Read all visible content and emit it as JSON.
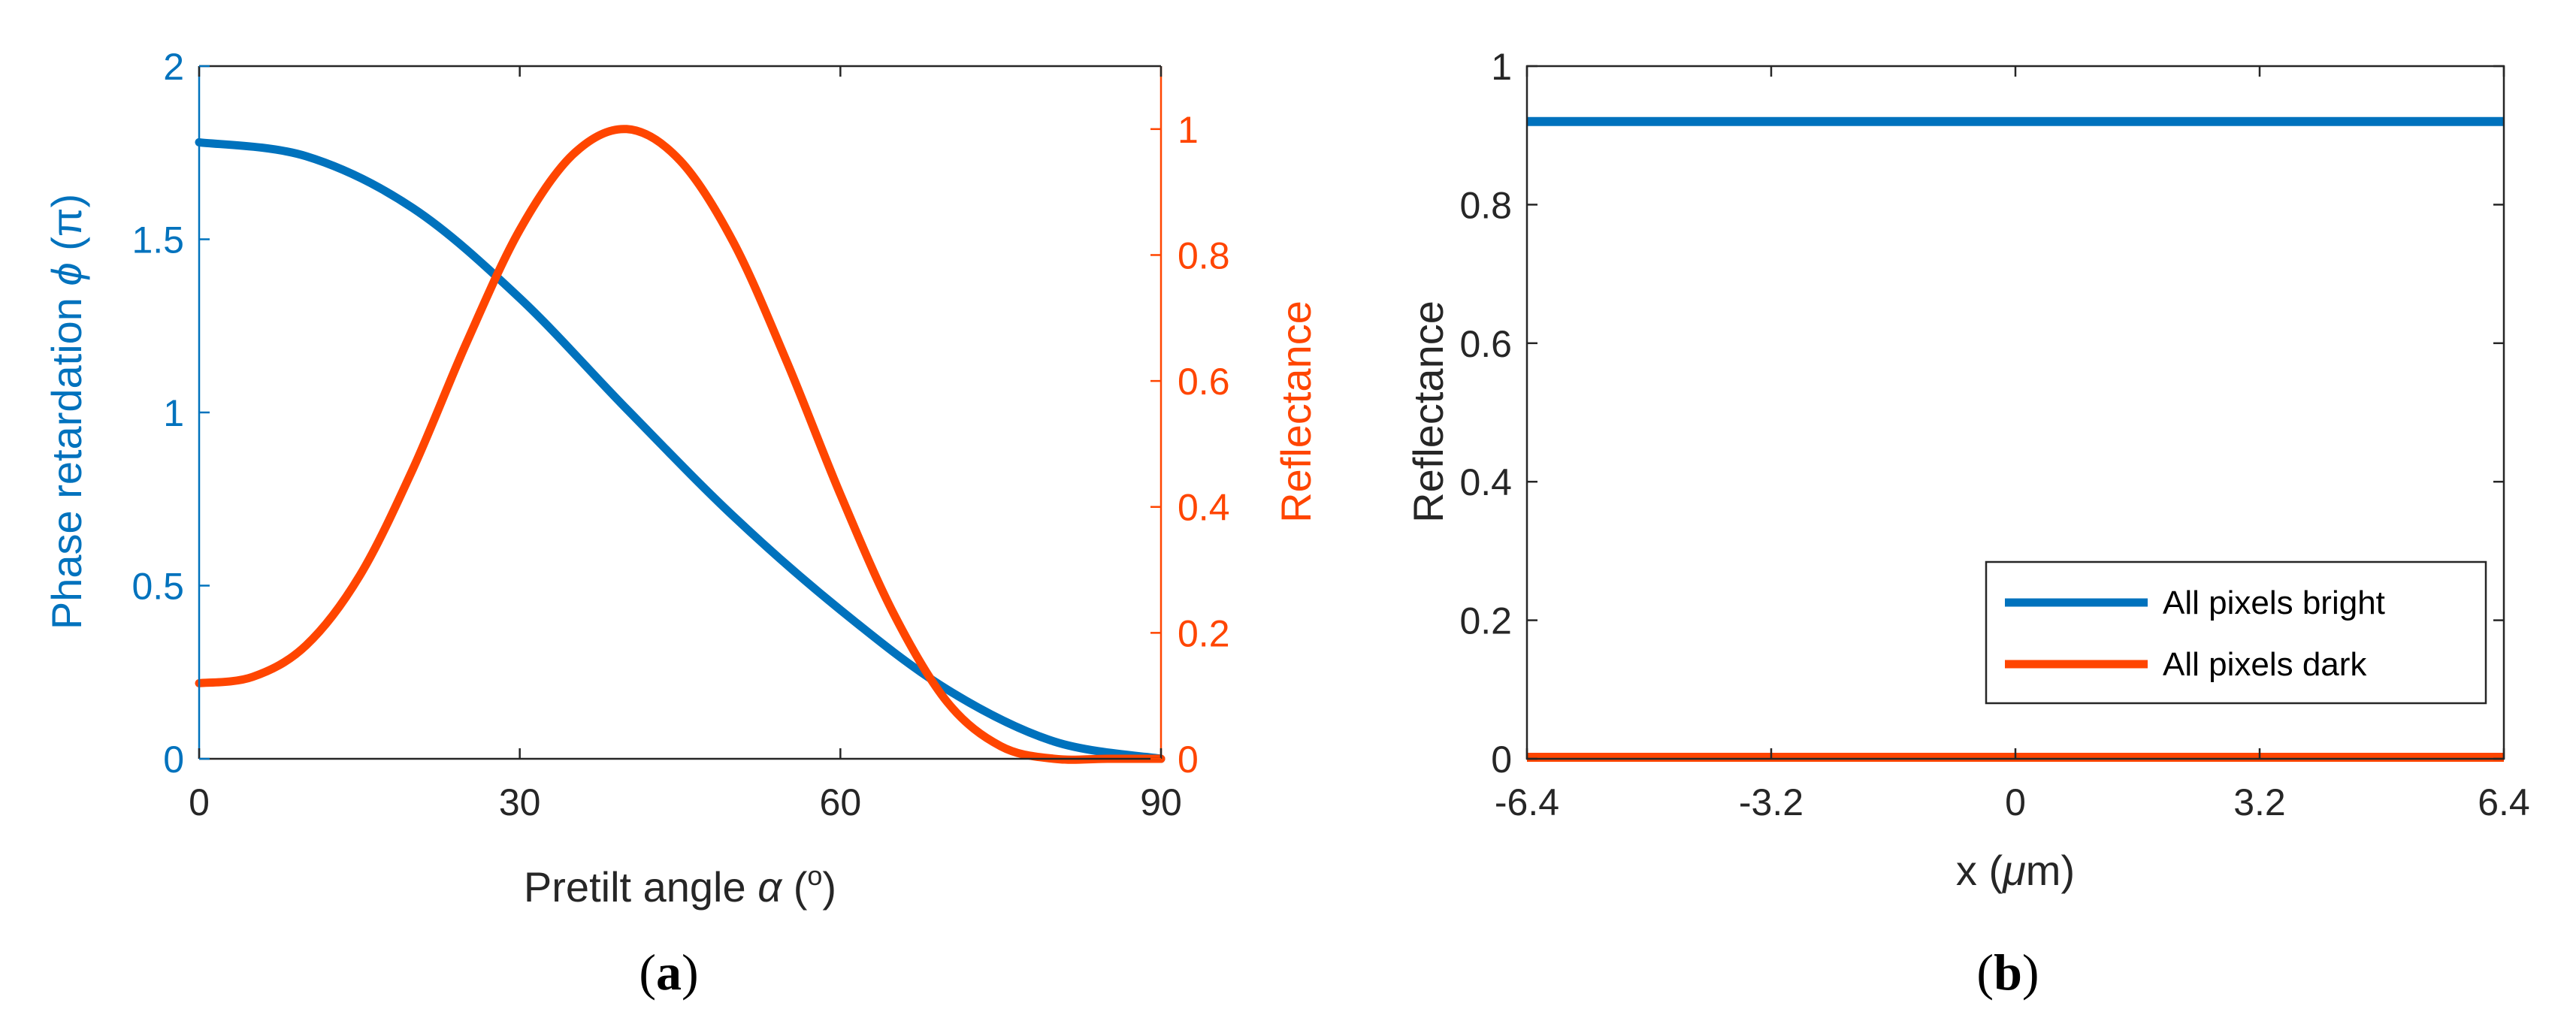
{
  "colors": {
    "blue": "#0072BD",
    "orange": "#FF4500",
    "axis": "#262626",
    "text": "#000000"
  },
  "chart_data": [
    {
      "type": "line",
      "panel": "a",
      "caption": {
        "open": "(",
        "letter": "a",
        "close": ")"
      },
      "xlabel": {
        "main": "Pretilt angle",
        "symbol": "α",
        "paren_open": "(",
        "degree": "o",
        "paren_close": ")"
      },
      "ylabel_left": {
        "main": "Phase retardation",
        "symbol": "ϕ",
        "unit": "(π)"
      },
      "ylabel_right": "Reflectance",
      "xlim": [
        0,
        90
      ],
      "ylim_left": [
        0,
        2
      ],
      "ylim_right": [
        0,
        1.1
      ],
      "xticks": [
        0,
        30,
        60,
        90
      ],
      "xtick_labels": [
        "0",
        "30",
        "60",
        "90"
      ],
      "yticks_left": [
        0,
        0.5,
        1,
        1.5,
        2
      ],
      "ytick_labels_left": [
        "0",
        "0.5",
        "1",
        "1.5",
        "2"
      ],
      "yticks_right": [
        0,
        0.2,
        0.4,
        0.6,
        0.8,
        1
      ],
      "ytick_labels_right": [
        "0",
        "0.2",
        "0.4",
        "0.6",
        "0.8",
        "1"
      ],
      "series": [
        {
          "name": "Phase retardation",
          "axis": "left",
          "color": "#0072BD",
          "x": [
            0,
            10,
            20,
            30,
            40,
            50,
            60,
            70,
            80,
            90
          ],
          "y": [
            1.78,
            1.74,
            1.59,
            1.33,
            1.01,
            0.7,
            0.43,
            0.2,
            0.05,
            0.0
          ]
        },
        {
          "name": "Reflectance",
          "axis": "right",
          "color": "#FF4500",
          "x": [
            0,
            5,
            10,
            15,
            20,
            25,
            30,
            35,
            40,
            45,
            50,
            55,
            60,
            65,
            70,
            75,
            80,
            85,
            90
          ],
          "y": [
            0.12,
            0.13,
            0.18,
            0.29,
            0.46,
            0.66,
            0.84,
            0.96,
            1.0,
            0.95,
            0.82,
            0.63,
            0.42,
            0.23,
            0.09,
            0.02,
            0.0,
            0.0,
            0.0
          ]
        }
      ]
    },
    {
      "type": "line",
      "panel": "b",
      "caption": {
        "open": "(",
        "letter": "b",
        "close": ")"
      },
      "xlabel": {
        "main": "x (",
        "symbol": "μ",
        "tail": "m)"
      },
      "ylabel": "Reflectance",
      "xlim": [
        -6.4,
        6.4
      ],
      "ylim": [
        0,
        1
      ],
      "xticks": [
        -6.4,
        -3.2,
        0,
        3.2,
        6.4
      ],
      "xtick_labels": [
        "-6.4",
        "-3.2",
        "0",
        "3.2",
        "6.4"
      ],
      "yticks": [
        0,
        0.2,
        0.4,
        0.6,
        0.8,
        1
      ],
      "ytick_labels": [
        "0",
        "0.2",
        "0.4",
        "0.6",
        "0.8",
        "1"
      ],
      "legend_position": "bottom-right",
      "series": [
        {
          "name": "All pixels bright",
          "color": "#0072BD",
          "x": [
            -6.4,
            6.4
          ],
          "y": [
            0.92,
            0.92
          ]
        },
        {
          "name": "All pixels dark",
          "color": "#FF4500",
          "x": [
            -6.4,
            6.4
          ],
          "y": [
            0.0,
            0.0
          ]
        }
      ]
    }
  ]
}
